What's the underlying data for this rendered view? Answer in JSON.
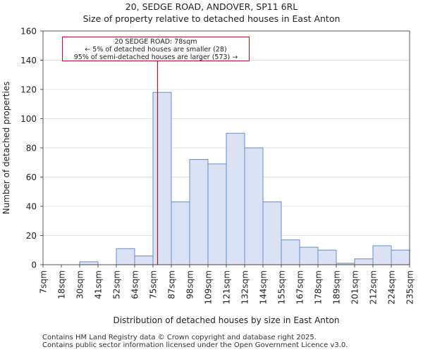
{
  "chart_data": {
    "type": "bar",
    "title": "20, SEDGE ROAD, ANDOVER, SP11 6RL",
    "subtitle": "Size of property relative to detached houses in East Anton",
    "xlabel": "Distribution of detached houses by size in East Anton",
    "ylabel": "Number of detached properties",
    "ylim": [
      0,
      160
    ],
    "yticks": [
      0,
      20,
      40,
      60,
      80,
      100,
      120,
      140,
      160
    ],
    "bin_edges": [
      "7sqm",
      "18sqm",
      "30sqm",
      "41sqm",
      "52sqm",
      "64sqm",
      "75sqm",
      "87sqm",
      "98sqm",
      "109sqm",
      "121sqm",
      "132sqm",
      "144sqm",
      "155sqm",
      "167sqm",
      "178sqm",
      "189sqm",
      "201sqm",
      "212sqm",
      "224sqm",
      "235sqm"
    ],
    "values": [
      0,
      0,
      2,
      0,
      11,
      6,
      118,
      43,
      72,
      69,
      90,
      80,
      43,
      17,
      12,
      10,
      1,
      4,
      13,
      10
    ],
    "bar_color": "#dae2f4",
    "bar_edge_color": "#6a8cc7",
    "marker": {
      "value_sqm": 78,
      "color": "#b01818"
    },
    "annotation": {
      "line1": "20 SEDGE ROAD: 78sqm",
      "line2": "← 5% of detached houses are smaller (28)",
      "line3": "95% of semi-detached houses are larger (573) →"
    }
  },
  "footer": {
    "line1": "Contains HM Land Registry data © Crown copyright and database right 2025.",
    "line2": "Contains public sector information licensed under the Open Government Licence v3.0."
  }
}
